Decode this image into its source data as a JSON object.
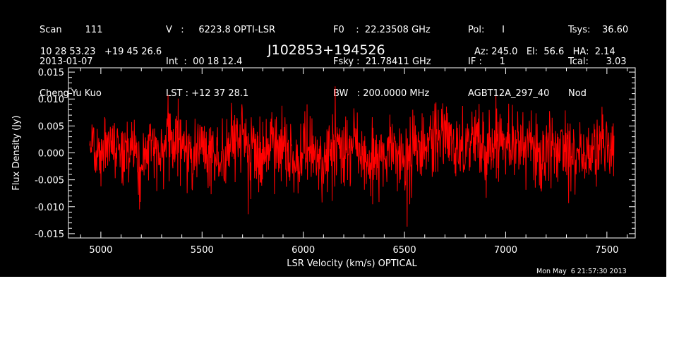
{
  "header": {
    "col1": [
      "Scan        111",
      "2013-01-07",
      "Cheng-Yu Kuo"
    ],
    "col2": [
      "V   :     6223.8 OPTI-LSR",
      "Int  :  00 18 12.4",
      "LST : +12 37 28.1"
    ],
    "col3": [
      "F0    :  22.23508 GHz",
      "Fsky :  21.78411 GHz",
      "BW   : 200.0000 MHz"
    ],
    "col4": [
      "Pol:      I",
      "IF :      1",
      "AGBT12A_297_40"
    ],
    "col5": [
      "Tsys:    36.60",
      "Tcal:      3.03",
      "Nod"
    ]
  },
  "coords": "10 28 53.23   +19 45 26.6",
  "source_name": "J102853+194526",
  "az_el_ha": "Az: 245.0   El:  56.6   HA:  2.14",
  "timestamp": "Mon May  6 21:57:30 2013",
  "colors": {
    "background": "#000000",
    "axes": "#ffffff",
    "trace": "#ff0000"
  },
  "chart_data": {
    "type": "line",
    "title": "J102853+194526",
    "xlabel": "LSR Velocity (km/s) OPTICAL",
    "ylabel": "Flux Density (Jy)",
    "xlim": [
      4840,
      7640
    ],
    "ylim": [
      -0.0158,
      0.0158
    ],
    "x_ticks": [
      5000,
      5500,
      6000,
      6500,
      7000,
      7500
    ],
    "y_ticks": [
      -0.015,
      -0.01,
      -0.005,
      0.0,
      0.005,
      0.01,
      0.015
    ],
    "y_tick_labels": [
      "-0.015",
      "-0.010",
      "-0.005",
      "0.000",
      "0.005",
      "0.010",
      "0.015"
    ],
    "x_range": [
      4945,
      7535
    ],
    "noise_rms": 0.0033,
    "baseline_mean": 0.0,
    "grid": false,
    "series": [
      {
        "x": [
          4950,
          5000,
          5050,
          5100,
          5150,
          5200,
          5250,
          5300,
          5350,
          5400,
          5450,
          5500,
          5550,
          5600,
          5650,
          5700,
          5750,
          5800,
          5850,
          5900,
          5950,
          6000,
          6050,
          6100,
          6150,
          6200,
          6250,
          6300,
          6350,
          6400,
          6450,
          6500,
          6550,
          6600,
          6650,
          6700,
          6750,
          6800,
          6850,
          6900,
          6950,
          7000,
          7050,
          7100,
          7150,
          7200,
          7250,
          7300,
          7350,
          7400,
          7450,
          7500,
          7530
        ],
        "values": [
          0.001,
          -0.001,
          0.002,
          0.0,
          0.001,
          -0.002,
          0.002,
          0.0,
          0.003,
          0.001,
          -0.001,
          0.002,
          0.0,
          -0.002,
          0.001,
          0.003,
          0.0,
          -0.001,
          0.002,
          0.001,
          -0.002,
          0.001,
          0.0,
          -0.002,
          0.001,
          -0.001,
          0.002,
          0.0,
          -0.002,
          -0.001,
          0.001,
          -0.002,
          0.0,
          0.001,
          0.002,
          0.003,
          0.002,
          0.001,
          0.003,
          0.0,
          0.002,
          0.004,
          0.001,
          0.002,
          0.0,
          -0.001,
          0.001,
          0.002,
          0.0,
          -0.001,
          0.001,
          0.002,
          0.0
        ]
      }
    ]
  }
}
